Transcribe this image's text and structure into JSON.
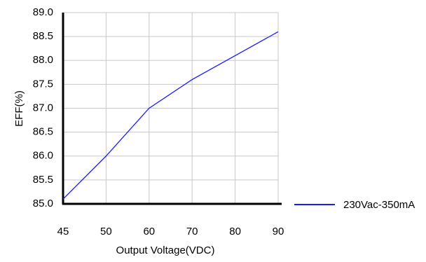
{
  "chart_data": {
    "type": "line",
    "xlabel": "Output Voltage(VDC)",
    "ylabel": "EFF(%)",
    "x_ticks": [
      "45",
      "50",
      "60",
      "70",
      "80",
      "90"
    ],
    "y_ticks": [
      "85.0",
      "85.5",
      "86.0",
      "86.5",
      "87.0",
      "87.5",
      "88.0",
      "88.5",
      "89.0"
    ],
    "ylim": [
      85.0,
      89.0
    ],
    "x_axis_note": "x tick labels are evenly spaced (categorical)",
    "grid": true,
    "legend_position": "right",
    "series": [
      {
        "name": "230Vac-350mA",
        "color": "#1a1aff",
        "x": [
          "45",
          "50",
          "60",
          "70",
          "80",
          "90"
        ],
        "values": [
          85.1,
          86.0,
          87.0,
          87.6,
          88.1,
          88.6
        ]
      }
    ]
  }
}
